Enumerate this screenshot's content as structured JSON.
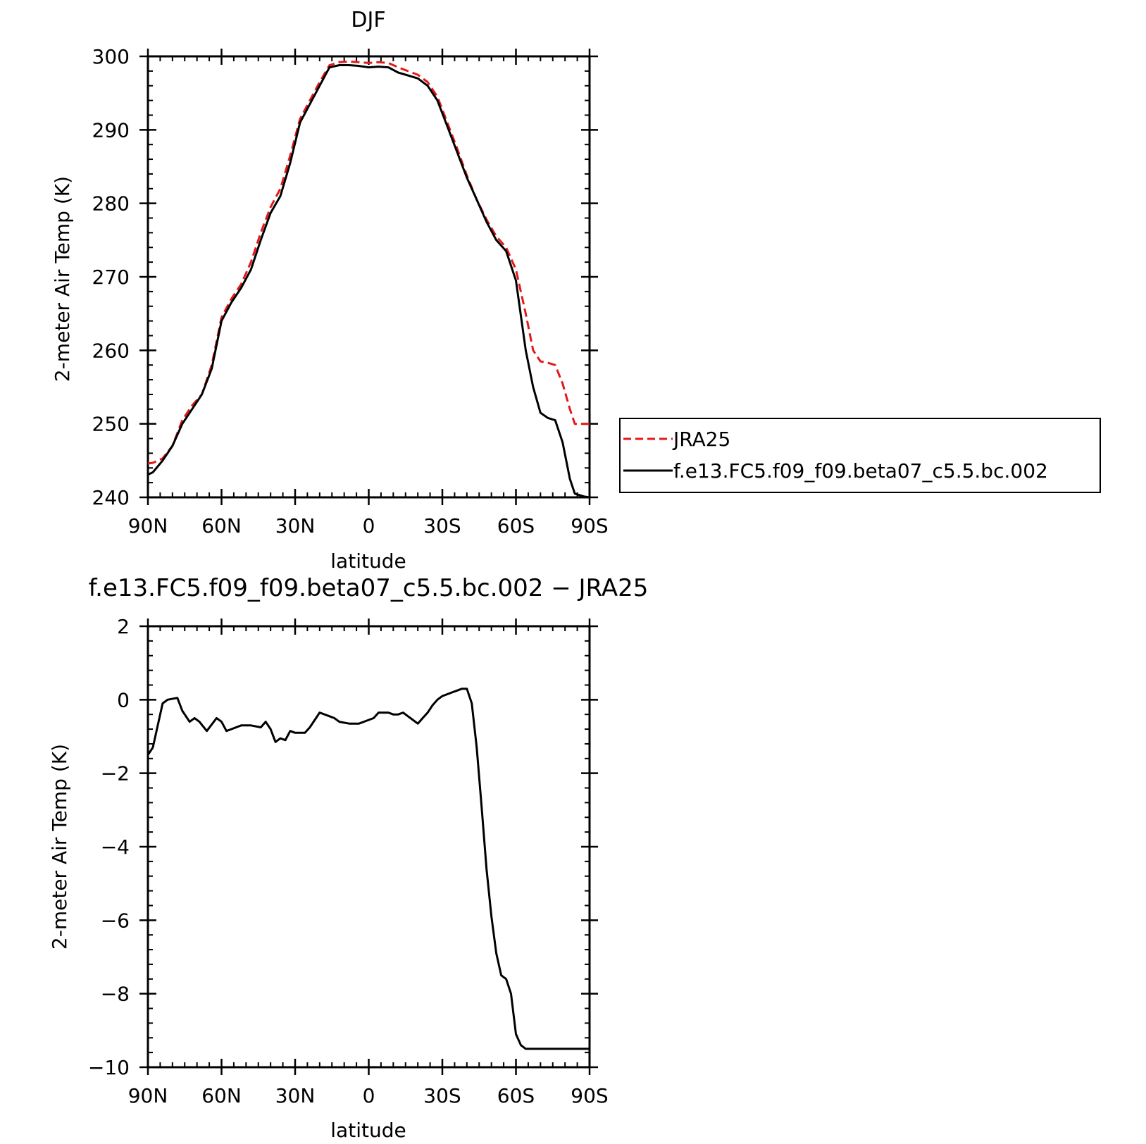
{
  "colors": {
    "jra": "#e31a1c",
    "model": "#000000",
    "axis": "#000000"
  },
  "chart_data": [
    {
      "type": "line",
      "title": "DJF",
      "xlabel": "latitude",
      "ylabel": "2-meter Air Temp (K)",
      "xlim": [
        90,
        -90
      ],
      "ylim": [
        240,
        300
      ],
      "xticks": [
        90,
        60,
        30,
        0,
        -30,
        -60,
        -90
      ],
      "xtick_labels": [
        "90N",
        "60N",
        "30N",
        "0",
        "30S",
        "60S",
        "90S"
      ],
      "yticks": [
        240,
        250,
        260,
        270,
        280,
        290,
        300
      ],
      "ytick_labels": [
        "240",
        "250",
        "260",
        "270",
        "280",
        "290",
        "300"
      ],
      "legend": {
        "placement": "right",
        "entries": [
          "JRA25",
          "f.e13.FC5.f09_f09.beta07_c5.5.bc.002"
        ]
      },
      "series": [
        {
          "name": "JRA25",
          "style": "dashed",
          "x": [
            90,
            88,
            84,
            80,
            76,
            72,
            68,
            64,
            60,
            56,
            52,
            48,
            44,
            40,
            36,
            32,
            28,
            24,
            20,
            16,
            12,
            8,
            4,
            0,
            -4,
            -8,
            -12,
            -16,
            -20,
            -24,
            -28,
            -32,
            -36,
            -40,
            -44,
            -48,
            -52,
            -56,
            -60,
            -64,
            -67,
            -70,
            -73,
            -76,
            -79,
            -82,
            -84,
            -86,
            -88,
            -90
          ],
          "y": [
            244.6,
            244.7,
            245.3,
            247.0,
            250.5,
            252.5,
            254.0,
            258.0,
            264.5,
            267.0,
            269.0,
            272.0,
            276.0,
            279.5,
            282.0,
            286.5,
            291.5,
            294.0,
            296.5,
            298.8,
            299.2,
            299.3,
            299.2,
            299.1,
            299.2,
            299.1,
            298.5,
            298.0,
            297.5,
            296.5,
            294.5,
            291.0,
            287.5,
            283.8,
            280.5,
            277.8,
            275.5,
            274.0,
            271.0,
            265.0,
            260.0,
            258.5,
            258.3,
            258.0,
            255.5,
            252.0,
            250.0,
            250.0,
            250.0,
            250.0
          ]
        },
        {
          "name": "f.e13.FC5.f09_f09.beta07_c5.5.bc.002",
          "style": "solid",
          "x": [
            90,
            88,
            84,
            80,
            76,
            72,
            68,
            64,
            60,
            56,
            52,
            48,
            44,
            40,
            36,
            32,
            28,
            24,
            20,
            16,
            12,
            8,
            4,
            0,
            -4,
            -8,
            -12,
            -16,
            -20,
            -24,
            -28,
            -32,
            -36,
            -40,
            -44,
            -48,
            -52,
            -56,
            -60,
            -64,
            -67,
            -70,
            -73,
            -76,
            -79,
            -82,
            -84,
            -86,
            -88,
            -90
          ],
          "y": [
            243.1,
            243.4,
            245.0,
            247.0,
            250.0,
            252.0,
            254.0,
            257.5,
            264.0,
            266.5,
            268.5,
            271.0,
            275.0,
            278.7,
            281.0,
            285.5,
            291.0,
            293.5,
            296.0,
            298.5,
            298.8,
            298.8,
            298.7,
            298.5,
            298.6,
            298.5,
            297.8,
            297.4,
            297.0,
            296.0,
            294.0,
            290.5,
            287.0,
            283.5,
            280.5,
            277.5,
            275.0,
            273.5,
            269.5,
            260.0,
            255.0,
            251.5,
            250.8,
            250.5,
            247.5,
            242.5,
            240.5,
            240.3,
            240.1,
            240.0
          ]
        }
      ]
    },
    {
      "type": "line",
      "title": "f.e13.FC5.f09_f09.beta07_c5.5.bc.002 − JRA25",
      "xlabel": "latitude",
      "ylabel": "2-meter Air Temp (K)",
      "xlim": [
        90,
        -90
      ],
      "ylim": [
        -10,
        2
      ],
      "xticks": [
        90,
        60,
        30,
        0,
        -30,
        -60,
        -90
      ],
      "xtick_labels": [
        "90N",
        "60N",
        "30N",
        "0",
        "30S",
        "60S",
        "90S"
      ],
      "yticks": [
        -10,
        -8,
        -6,
        -4,
        -2,
        0,
        2
      ],
      "ytick_labels": [
        "−10",
        "−8",
        "−6",
        "−4",
        "−2",
        "0",
        "2"
      ],
      "series": [
        {
          "style": "solid",
          "x": [
            90,
            88,
            84,
            82,
            78,
            76,
            73,
            71,
            69,
            66,
            62,
            60,
            58,
            56,
            52,
            48,
            44,
            42,
            40,
            38,
            36,
            34,
            32,
            30,
            28,
            26,
            24,
            22,
            20,
            18,
            16,
            14,
            12,
            8,
            6,
            4,
            2,
            0,
            -2,
            -4,
            -6,
            -8,
            -10,
            -12,
            -14,
            -16,
            -18,
            -20,
            -22,
            -24,
            -26,
            -28,
            -30,
            -32,
            -34,
            -36,
            -38,
            -40,
            -42,
            -44,
            -46,
            -48,
            -50,
            -52,
            -54,
            -56,
            -58,
            -60,
            -62,
            -64,
            -66,
            -68,
            -70,
            -72,
            -74,
            -76,
            -78,
            -80,
            -82,
            -84,
            -86,
            -88,
            -90
          ],
          "y": [
            -1.5,
            -1.3,
            -0.1,
            0.0,
            0.05,
            -0.3,
            -0.6,
            -0.5,
            -0.6,
            -0.85,
            -0.5,
            -0.6,
            -0.85,
            -0.8,
            -0.7,
            -0.7,
            -0.75,
            -0.6,
            -0.8,
            -1.15,
            -1.05,
            -1.1,
            -0.85,
            -0.9,
            -0.9,
            -0.9,
            -0.75,
            -0.55,
            -0.35,
            -0.4,
            -0.45,
            -0.5,
            -0.6,
            -0.65,
            -0.65,
            -0.65,
            -0.6,
            -0.55,
            -0.5,
            -0.35,
            -0.35,
            -0.35,
            -0.4,
            -0.4,
            -0.35,
            -0.45,
            -0.55,
            -0.65,
            -0.5,
            -0.35,
            -0.15,
            0.0,
            0.1,
            0.15,
            0.2,
            0.25,
            0.3,
            0.3,
            -0.1,
            -1.3,
            -2.9,
            -4.6,
            -5.9,
            -6.9,
            -7.5,
            -7.6,
            -8.0,
            -9.1,
            -9.4,
            -9.5,
            -9.5,
            -9.5,
            -9.5,
            -9.5,
            -9.5,
            -9.5,
            -9.5,
            -9.5,
            -9.5,
            -9.5,
            -9.5,
            -9.5,
            -9.5
          ]
        }
      ]
    }
  ]
}
